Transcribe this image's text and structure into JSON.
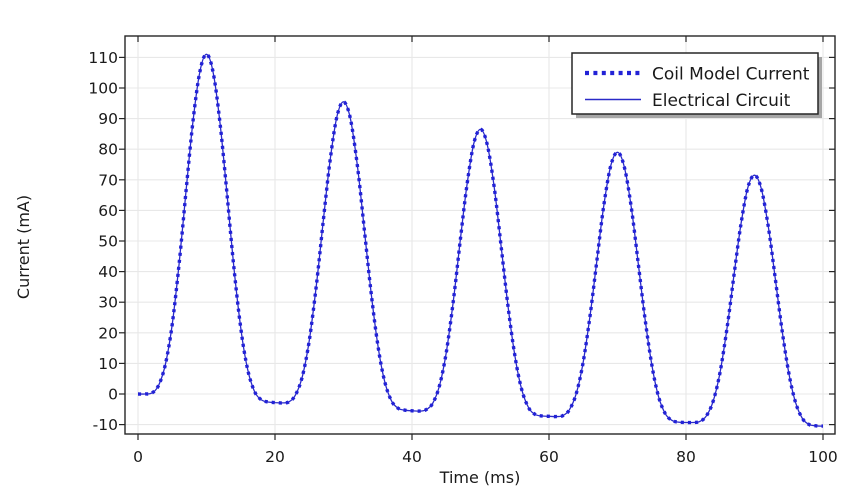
{
  "figure": {
    "background": "#ffffff",
    "plot_border_color": "#262626",
    "grid_color": "#e8e8e8",
    "text_color": "#1a1a1a",
    "legend_shadow_color": "#a6a6a6"
  },
  "chart_data": {
    "type": "line",
    "title": "",
    "xlabel": "Time (ms)",
    "ylabel": "Current (mA)",
    "xlim": [
      -1.9,
      101.8
    ],
    "ylim": [
      -13.1,
      117
    ],
    "xticks": [
      0,
      20,
      40,
      60,
      80,
      100
    ],
    "yticks": [
      -10,
      0,
      10,
      20,
      30,
      40,
      50,
      60,
      70,
      80,
      90,
      100,
      110
    ],
    "grid": true,
    "legend_position": "top-right",
    "x": [
      0,
      1,
      2,
      3,
      4,
      5,
      6,
      7,
      8,
      9,
      10,
      11,
      12,
      13,
      14,
      15,
      16,
      17,
      18,
      19,
      20,
      21,
      22,
      23,
      24,
      25,
      26,
      27,
      28,
      29,
      30,
      31,
      32,
      33,
      34,
      35,
      36,
      37,
      38,
      39,
      40,
      41,
      42,
      43,
      44,
      45,
      46,
      47,
      48,
      49,
      50,
      51,
      52,
      53,
      54,
      55,
      56,
      57,
      58,
      59,
      60,
      61,
      62,
      63,
      64,
      65,
      66,
      67,
      68,
      69,
      70,
      71,
      72,
      73,
      74,
      75,
      76,
      77,
      78,
      79,
      80,
      81,
      82,
      83,
      84,
      85,
      86,
      87,
      88,
      89,
      90,
      91,
      92,
      93,
      94,
      95,
      96,
      97,
      98,
      99,
      100
    ],
    "series": [
      {
        "name": "Coil Model Current",
        "style": "dotted",
        "color": "#2222d6",
        "values": [
          0.0,
          0.0,
          0.3,
          2.8,
          9.7,
          22.9,
          42.5,
          65.9,
          88.6,
          105.0,
          111.0,
          104.8,
          88.0,
          65.1,
          41.3,
          21.5,
          8.1,
          0.9,
          -1.9,
          -2.6,
          -2.8,
          -2.9,
          -2.6,
          -0.3,
          5.8,
          17.5,
          34.8,
          55.5,
          75.6,
          90.2,
          95.5,
          90.0,
          75.1,
          54.7,
          33.7,
          16.1,
          4.2,
          -2.2,
          -4.7,
          -5.3,
          -5.5,
          -5.6,
          -5.2,
          -3.1,
          2.6,
          13.6,
          29.8,
          49.2,
          67.9,
          81.6,
          86.5,
          81.4,
          67.6,
          48.6,
          29.0,
          12.7,
          1.6,
          -4.4,
          -6.7,
          -7.2,
          -7.3,
          -7.4,
          -7.1,
          -5.1,
          0.3,
          10.6,
          25.7,
          43.9,
          61.6,
          74.4,
          79.0,
          74.2,
          61.2,
          43.3,
          24.9,
          9.6,
          -0.9,
          -6.5,
          -8.7,
          -9.2,
          -9.3,
          -9.3,
          -9.0,
          -7.1,
          -2.1,
          7.5,
          21.7,
          38.7,
          55.2,
          67.2,
          71.5,
          67.0,
          54.9,
          38.4,
          21.2,
          6.9,
          -2.8,
          -8.0,
          -10.0,
          -10.4,
          -10.5
        ]
      },
      {
        "name": "Electrical Circuit",
        "style": "solid",
        "color": "#2a2ac8",
        "values": [
          0.0,
          0.0,
          0.3,
          2.8,
          9.7,
          22.9,
          42.5,
          65.9,
          88.6,
          105.0,
          111.0,
          104.8,
          88.0,
          65.1,
          41.3,
          21.5,
          8.1,
          0.9,
          -1.9,
          -2.6,
          -2.8,
          -2.9,
          -2.6,
          -0.3,
          5.8,
          17.5,
          34.8,
          55.5,
          75.6,
          90.2,
          95.5,
          90.0,
          75.1,
          54.7,
          33.7,
          16.1,
          4.2,
          -2.2,
          -4.7,
          -5.3,
          -5.5,
          -5.6,
          -5.2,
          -3.1,
          2.6,
          13.6,
          29.8,
          49.2,
          67.9,
          81.6,
          86.5,
          81.4,
          67.6,
          48.6,
          29.0,
          12.7,
          1.6,
          -4.4,
          -6.7,
          -7.2,
          -7.3,
          -7.4,
          -7.1,
          -5.1,
          0.3,
          10.6,
          25.7,
          43.9,
          61.6,
          74.4,
          79.0,
          74.2,
          61.2,
          43.3,
          24.9,
          9.6,
          -0.9,
          -6.5,
          -8.7,
          -9.2,
          -9.3,
          -9.3,
          -9.0,
          -7.1,
          -2.1,
          7.5,
          21.7,
          38.7,
          55.2,
          67.2,
          71.5,
          67.0,
          54.9,
          38.4,
          21.2,
          6.9,
          -2.8,
          -8.0,
          -10.0,
          -10.4,
          -10.5
        ]
      }
    ],
    "peaks": {
      "t": [
        10,
        30,
        50,
        70,
        90
      ],
      "values": [
        111.0,
        95.5,
        86.5,
        79.0,
        71.5
      ]
    },
    "troughs": {
      "t": [
        20,
        40,
        60,
        80,
        100
      ],
      "values": [
        -2.8,
        -5.5,
        -7.3,
        -9.3,
        -10.5
      ]
    }
  }
}
